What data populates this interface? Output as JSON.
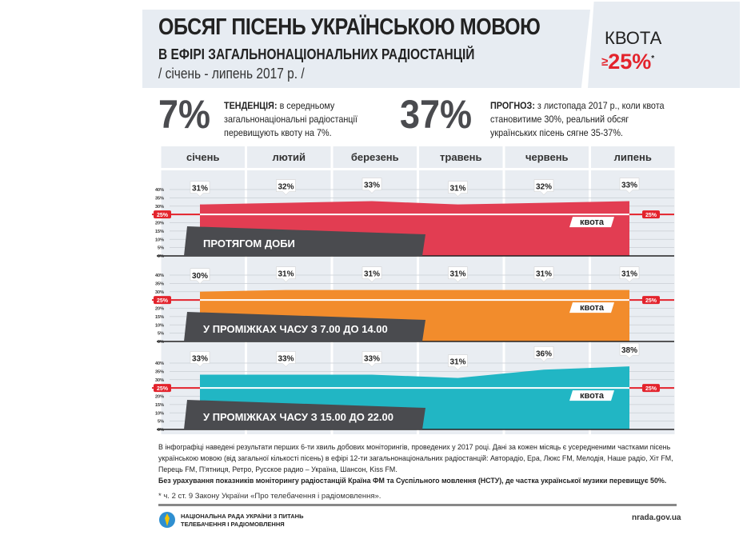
{
  "header": {
    "title": "ОБСЯГ ПІСЕНЬ УКРАЇНСЬКОЮ МОВОЮ",
    "subtitle": "В ЕФІРІ ЗАГАЛЬНОНАЦІОНАЛЬНИХ РАДІОСТАНЦІЙ",
    "period": "/ січень - липень 2017 р. /",
    "quota_label": "КВОТА",
    "quota_sign": "≥",
    "quota_value": "25%",
    "quota_mark": "*"
  },
  "stats": [
    {
      "value": "7%",
      "label": "ТЕНДЕНЦІЯ:",
      "text": "в середньому загальнонаціональні радіостанції перевищують квоту на 7%."
    },
    {
      "value": "37%",
      "label": "ПРОГНОЗ:",
      "text": "з листопада 2017 р., коли квота становитиме 30%, реальний обсяг українських пісень сягне 35-37%."
    }
  ],
  "chart_data": [
    {
      "type": "area",
      "title": "ПРОТЯГОМ ДОБИ",
      "categories": [
        "січень",
        "лютий",
        "березень",
        "травень",
        "червень",
        "липень"
      ],
      "values": [
        31,
        32,
        33,
        31,
        32,
        33
      ],
      "data_labels": [
        "31%",
        "32%",
        "33%",
        "31%",
        "32%",
        "33%"
      ],
      "ylim": [
        0,
        40
      ],
      "yticks": [
        "0%",
        "5%",
        "10%",
        "15%",
        "20%",
        "25%",
        "30%",
        "35%",
        "40%"
      ],
      "quota": 25,
      "quota_label": "квота",
      "quota_tag": "25%",
      "color": "#e23d52",
      "grid": true
    },
    {
      "type": "area",
      "title": "У ПРОМІЖКАХ ЧАСУ З 7.00 ДО 14.00",
      "categories": [
        "січень",
        "лютий",
        "березень",
        "травень",
        "червень",
        "липень"
      ],
      "values": [
        30,
        31,
        31,
        31,
        31,
        31
      ],
      "data_labels": [
        "30%",
        "31%",
        "31%",
        "31%",
        "31%",
        "31%"
      ],
      "ylim": [
        0,
        40
      ],
      "yticks": [
        "0%",
        "5%",
        "10%",
        "15%",
        "20%",
        "25%",
        "30%",
        "35%",
        "40%"
      ],
      "quota": 25,
      "quota_label": "квота",
      "quota_tag": "25%",
      "color": "#f28c2c",
      "grid": true
    },
    {
      "type": "area",
      "title": "У ПРОМІЖКАХ ЧАСУ З 15.00 ДО 22.00",
      "categories": [
        "січень",
        "лютий",
        "березень",
        "травень",
        "червень",
        "липень"
      ],
      "values": [
        33,
        33,
        33,
        31,
        36,
        38
      ],
      "data_labels": [
        "33%",
        "33%",
        "33%",
        "31%",
        "36%",
        "38%"
      ],
      "ylim": [
        0,
        40
      ],
      "yticks": [
        "0%",
        "5%",
        "10%",
        "15%",
        "20%",
        "25%",
        "30%",
        "35%",
        "40%"
      ],
      "quota": 25,
      "quota_label": "квота",
      "quota_tag": "25%",
      "color": "#21b6c4",
      "grid": true
    }
  ],
  "footer": {
    "note": "В інфографіці наведені результати перших 6-ти хвиль добових моніторингів, проведених у 2017 році. Дані за кожен місяць є усередненими частками пісень українською мовою (від загальної кількості пісень) в ефірі 12-ти загальнонаціональних радіостанцій: Авторадіо, Ера, Люкс FM, Мелодія, Наше радіо, Хіт FM, Перець FM, П'ятниця, Ретро, Русское радио – Україна, Шансон, Kiss FM.",
    "bold_note": "Без урахування показників моніторингу радіостанцій Країна ФМ та Суспільного мовлення (НСТУ), де частка української музики перевищує  50%.",
    "footnote": "* ч. 2 ст. 9 Закону України «Про телебачення і радіомовлення».",
    "org_line1": "НАЦІОНАЛЬНА РАДА УКРАЇНИ З ПИТАНЬ",
    "org_line2": "ТЕЛЕБАЧЕННЯ І РАДІОМОВЛЕННЯ",
    "site": "nrada.gov.ua"
  }
}
